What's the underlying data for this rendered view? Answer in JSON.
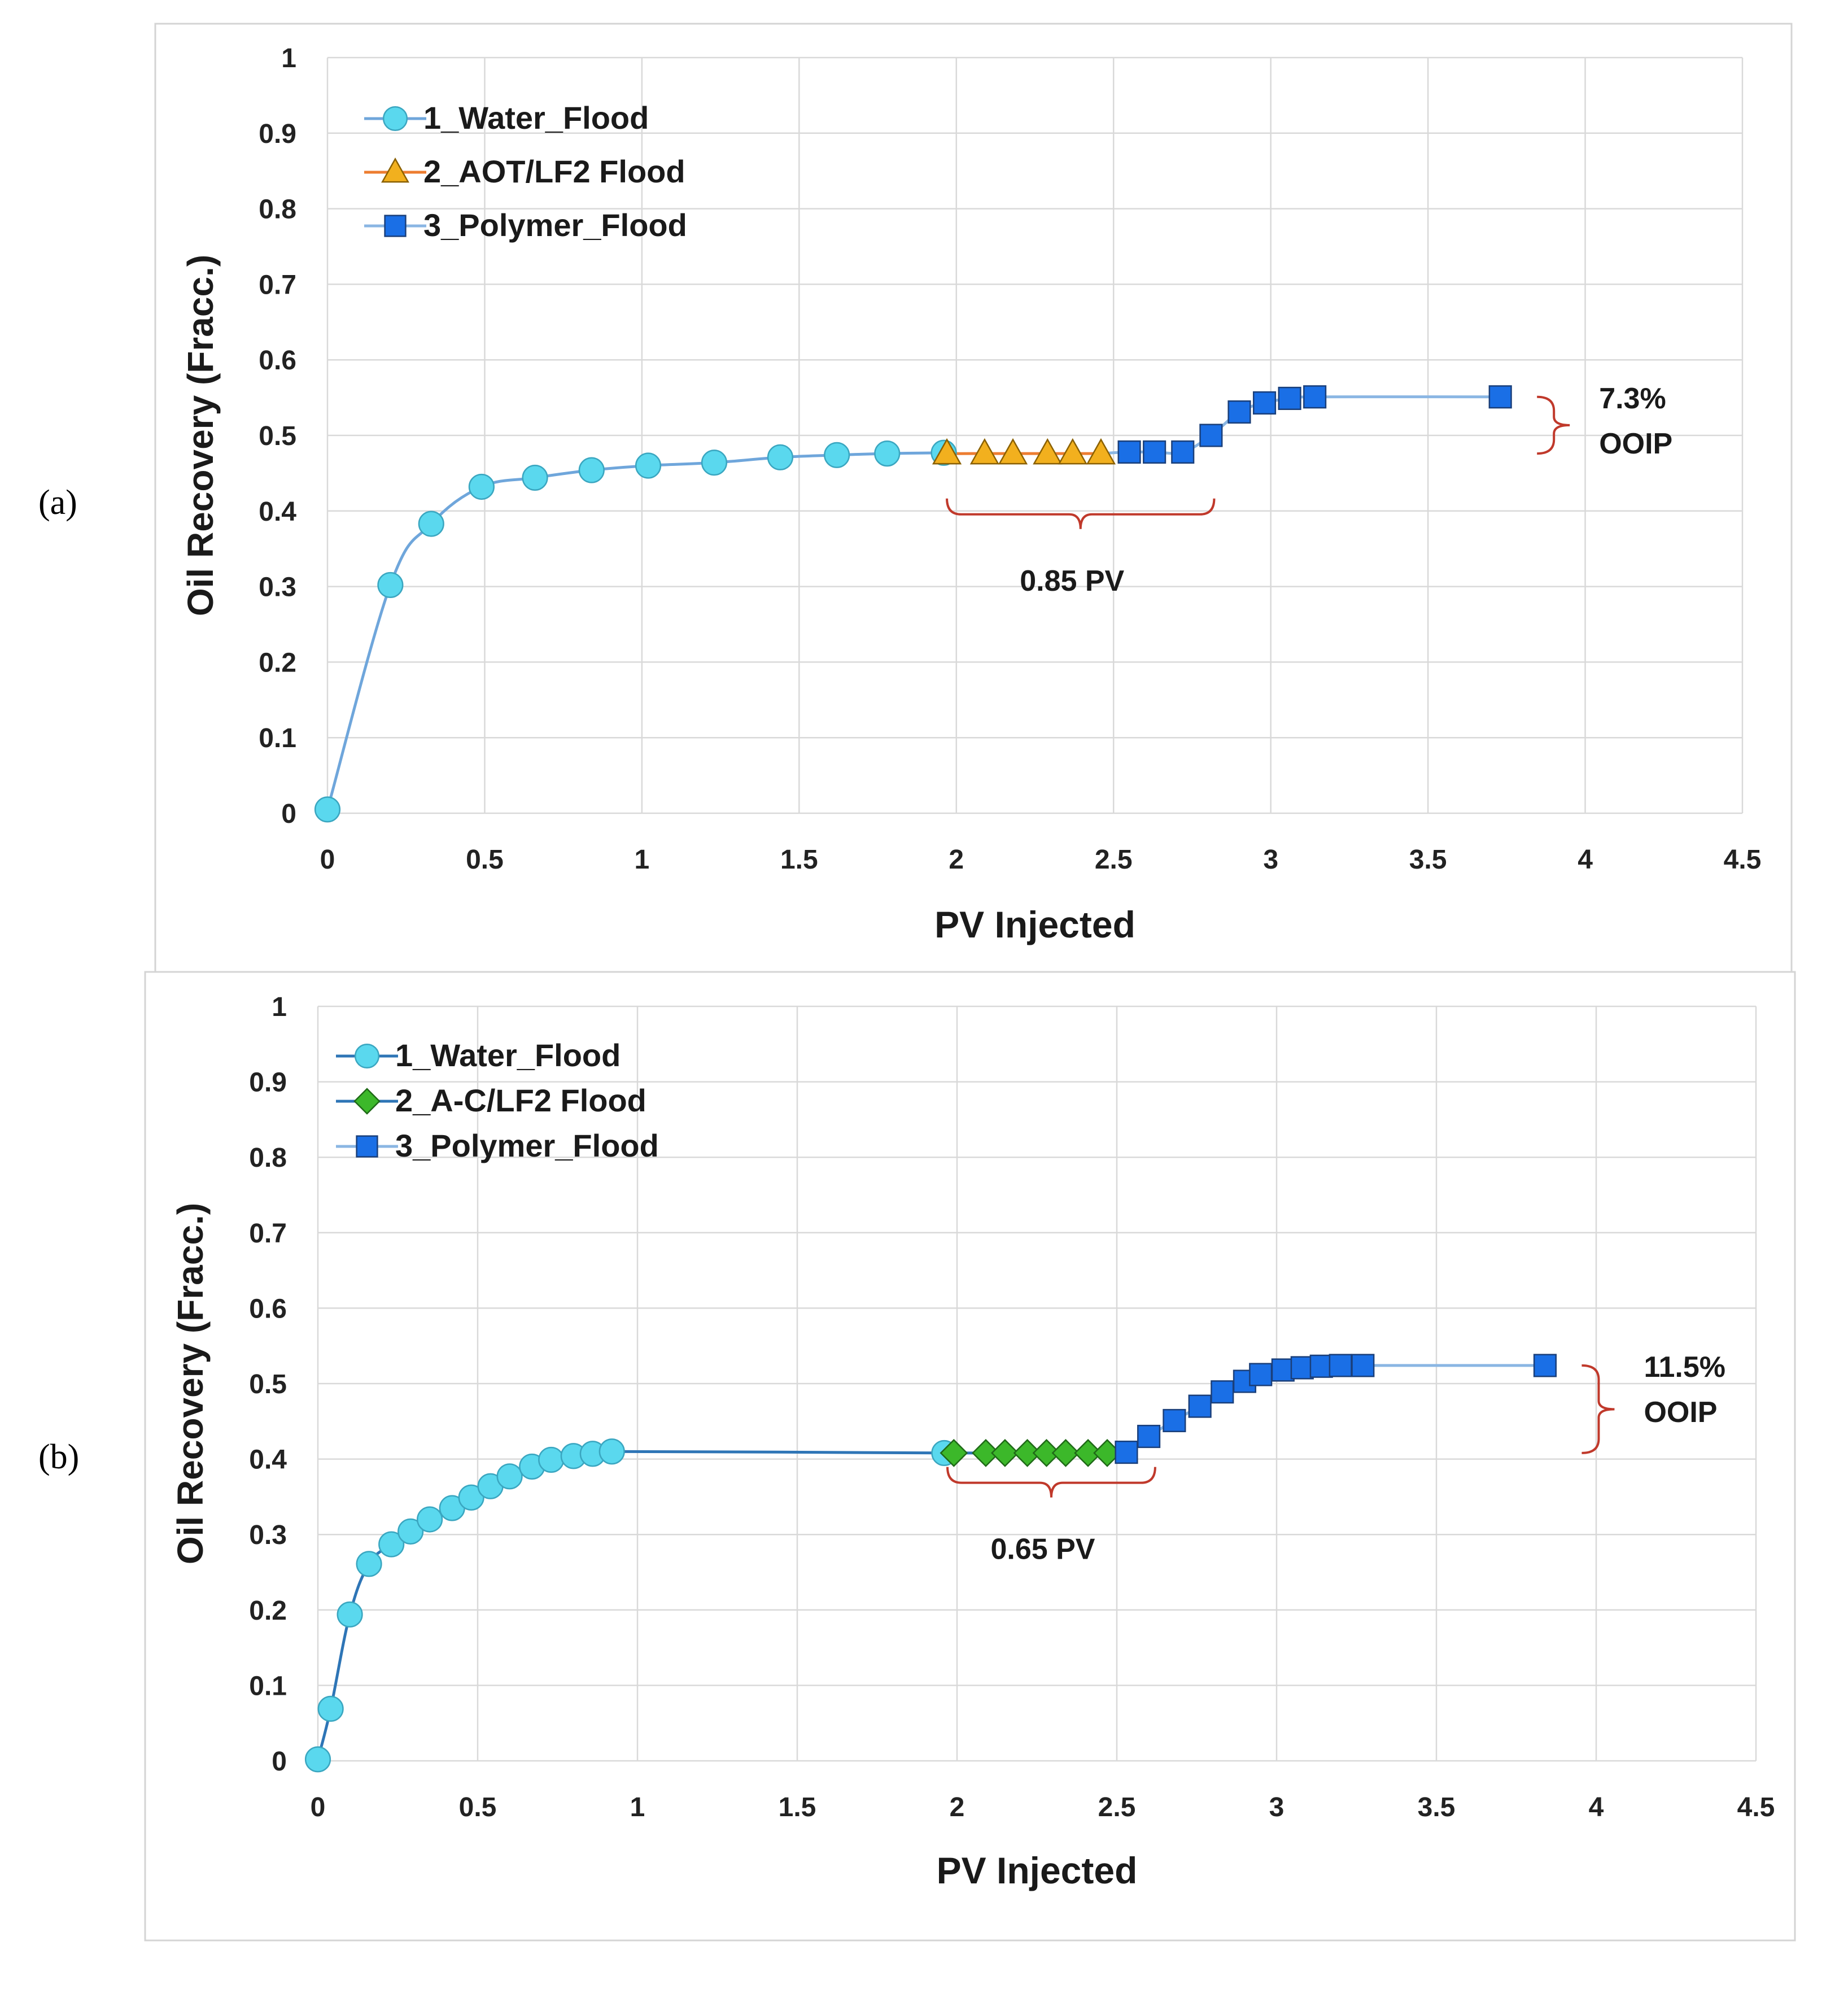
{
  "panels": [
    {
      "letter_text": "(a)",
      "chart_data": {
        "type": "scatter",
        "title": "",
        "xlabel": "PV Injected",
        "ylabel": "Oil Recovery (Fracc.)",
        "xlim": [
          0,
          4.5
        ],
        "ylim": [
          0,
          1
        ],
        "xticks": [
          0,
          0.5,
          1,
          1.5,
          2,
          2.5,
          3,
          3.5,
          4,
          4.5
        ],
        "xtick_labels": [
          "0",
          "0.5",
          "1",
          "1.5",
          "2",
          "2.5",
          "3",
          "3.5",
          "4",
          "4.5"
        ],
        "yticks": [
          0,
          0.1,
          0.2,
          0.3,
          0.4,
          0.5,
          0.6,
          0.7,
          0.8,
          0.9,
          1
        ],
        "ytick_labels": [
          "0",
          "0.1",
          "0.2",
          "0.3",
          "0.4",
          "0.5",
          "0.6",
          "0.7",
          "0.8",
          "0.9",
          "1"
        ],
        "grid": true,
        "legend_position": "top-left",
        "series": [
          {
            "name": "1_Water_Flood",
            "marker": "circle",
            "color": "#5ad8ee",
            "line_color": "#6fa6db",
            "x": [
              0,
              0.2,
              0.33,
              0.49,
              0.66,
              0.84,
              1.02,
              1.23,
              1.44,
              1.62,
              1.78,
              1.96
            ],
            "y": [
              0.005,
              0.302,
              0.383,
              0.432,
              0.444,
              0.454,
              0.46,
              0.464,
              0.471,
              0.474,
              0.476,
              0.477
            ]
          },
          {
            "name": "2_AOT/LF2 Flood",
            "marker": "triangle",
            "color": "#f2b01e",
            "line_color": "#ed7d31",
            "x": [
              1.97,
              2.09,
              2.18,
              2.29,
              2.37,
              2.46
            ],
            "y": [
              0.476,
              0.476,
              0.476,
              0.476,
              0.476,
              0.476
            ]
          },
          {
            "name": "3_Polymer_Flood",
            "marker": "square",
            "color": "#1a6fe6",
            "line_color": "#8ab6e3",
            "x": [
              2.55,
              2.63,
              2.72,
              2.81,
              2.9,
              2.98,
              3.06,
              3.14,
              3.73
            ],
            "y": [
              0.478,
              0.478,
              0.478,
              0.5,
              0.531,
              0.543,
              0.549,
              0.551,
              0.551
            ]
          }
        ],
        "annotations": [
          {
            "text": "0.85 PV",
            "x_start": 1.97,
            "x_end": 2.82,
            "y": 0.403
          },
          {
            "text_line1": "7.3%",
            "text_line2": "OOIP",
            "y_low": 0.476,
            "y_high": 0.551
          }
        ]
      }
    },
    {
      "letter_text": "(b)",
      "chart_data": {
        "type": "scatter",
        "title": "",
        "xlabel": "PV Injected",
        "ylabel": "Oil Recovery (Fracc.)",
        "xlim": [
          0,
          4.5
        ],
        "ylim": [
          0,
          1
        ],
        "xticks": [
          0,
          0.5,
          1,
          1.5,
          2,
          2.5,
          3,
          3.5,
          4,
          4.5
        ],
        "xtick_labels": [
          "0",
          "0.5",
          "1",
          "1.5",
          "2",
          "2.5",
          "3",
          "3.5",
          "4",
          "4.5"
        ],
        "yticks": [
          0,
          0.1,
          0.2,
          0.3,
          0.4,
          0.5,
          0.6,
          0.7,
          0.8,
          0.9,
          1
        ],
        "ytick_labels": [
          "0",
          "0.1",
          "0.2",
          "0.3",
          "0.4",
          "0.5",
          "0.6",
          "0.7",
          "0.8",
          "0.9",
          "1"
        ],
        "grid": true,
        "legend_position": "top-left",
        "series": [
          {
            "name": "1_Water_Flood",
            "marker": "circle",
            "color": "#5ad8ee",
            "line_color": "#2e75b6",
            "x": [
              0,
              0.04,
              0.1,
              0.16,
              0.23,
              0.29,
              0.35,
              0.42,
              0.48,
              0.54,
              0.6,
              0.67,
              0.73,
              0.8,
              0.86,
              0.92,
              1.96
            ],
            "y": [
              0.002,
              0.069,
              0.194,
              0.261,
              0.287,
              0.304,
              0.32,
              0.335,
              0.349,
              0.364,
              0.377,
              0.39,
              0.399,
              0.404,
              0.407,
              0.41,
              0.408
            ]
          },
          {
            "name": "2_A-C/LF2 Flood",
            "marker": "diamond",
            "color": "#3cb82a",
            "line_color": "#2e75b6",
            "x": [
              1.99,
              2.09,
              2.15,
              2.22,
              2.28,
              2.34,
              2.41,
              2.47
            ],
            "y": [
              0.408,
              0.408,
              0.408,
              0.408,
              0.408,
              0.408,
              0.408,
              0.408
            ]
          },
          {
            "name": "3_Polymer_Flood",
            "marker": "square",
            "color": "#1a6fe6",
            "line_color": "#8ab6e3",
            "x": [
              2.53,
              2.6,
              2.68,
              2.76,
              2.83,
              2.9,
              2.95,
              3.02,
              3.08,
              3.14,
              3.2,
              3.27,
              3.84
            ],
            "y": [
              0.409,
              0.43,
              0.451,
              0.47,
              0.489,
              0.503,
              0.512,
              0.518,
              0.521,
              0.523,
              0.524,
              0.524,
              0.524
            ]
          }
        ],
        "annotations": [
          {
            "text": "0.65 PV",
            "x_start": 1.97,
            "x_end": 2.62,
            "y": 0.376
          },
          {
            "text_line1": "11.5%",
            "text_line2": "OOIP",
            "y_low": 0.408,
            "y_high": 0.524
          }
        ]
      }
    }
  ]
}
